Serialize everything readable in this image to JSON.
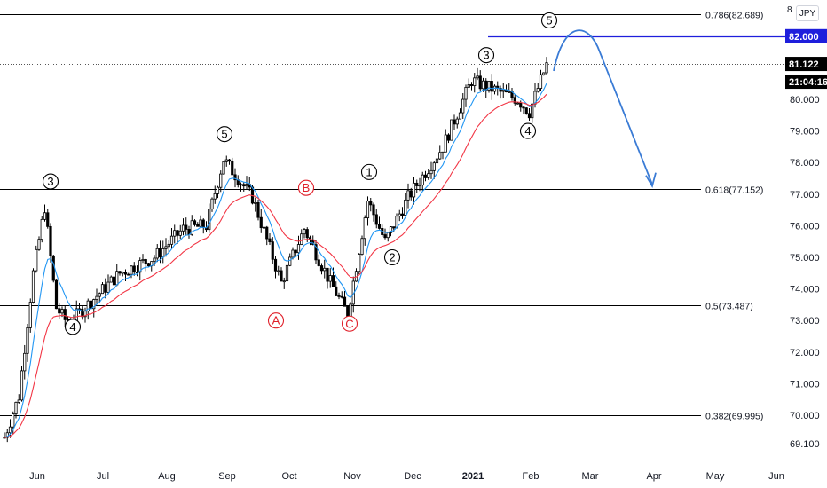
{
  "currency_badge": "JPY",
  "top_axis_fragment": "8",
  "colors": {
    "up_candle": "#000000",
    "down_candle": "#000000",
    "ema_fast": "#2196f3",
    "ema_slow": "#f23645",
    "fib_line": "#000000",
    "target_line": "#1e1edc",
    "projection": "#3a7bd5",
    "wave_black": "#000000",
    "wave_red": "#e0202a"
  },
  "chart_data": {
    "type": "candlestick",
    "y_axis_ticks": [
      "69.100",
      "70.000",
      "71.000",
      "72.000",
      "73.000",
      "74.000",
      "75.000",
      "76.000",
      "77.000",
      "78.000",
      "79.000",
      "80.000"
    ],
    "ylim": [
      68.6,
      83.2
    ],
    "x_axis_ticks": [
      "Jun",
      "Jul",
      "Aug",
      "Sep",
      "Oct",
      "Nov",
      "Dec",
      "2021",
      "Feb",
      "Mar",
      "Apr",
      "May",
      "Jun"
    ],
    "fib_levels": [
      {
        "label": "0.786(82.689)",
        "value": 82.689
      },
      {
        "label": "0.618(77.152)",
        "value": 77.152
      },
      {
        "label": "0.5(73.487)",
        "value": 73.487
      },
      {
        "label": "0.382(69.995)",
        "value": 69.995
      }
    ],
    "price_tags": [
      {
        "label": "82.000",
        "value": 82.0,
        "style": "target"
      },
      {
        "label": "81.122",
        "value": 81.122,
        "style": "current"
      },
      {
        "label": "21:04:16",
        "value": 80.6,
        "style": "countdown"
      }
    ],
    "target_line": {
      "value": 82.0,
      "from_month": "Jan",
      "to_month": "Mar"
    },
    "current_price": 81.122,
    "wave_labels": [
      {
        "text": "3",
        "color": "black",
        "month": "Jun",
        "price": 77.4
      },
      {
        "text": "4",
        "color": "black",
        "month": "Jun",
        "price": 72.8
      },
      {
        "text": "5",
        "color": "black",
        "month": "Sep",
        "price": 78.9
      },
      {
        "text": "A",
        "color": "red",
        "month": "Oct",
        "price": 73.0
      },
      {
        "text": "B",
        "color": "red",
        "month": "Oct",
        "price": 77.2
      },
      {
        "text": "C",
        "color": "red",
        "month": "Nov",
        "price": 72.9
      },
      {
        "text": "1",
        "color": "black",
        "month": "Nov",
        "price": 77.7
      },
      {
        "text": "2",
        "color": "black",
        "month": "Nov",
        "price": 75.0
      },
      {
        "text": "3",
        "color": "black",
        "month": "Jan",
        "price": 81.4
      },
      {
        "text": "4",
        "color": "black",
        "month": "Feb",
        "price": 79.0
      },
      {
        "text": "5",
        "color": "black",
        "month": "Feb",
        "price": 82.5
      }
    ],
    "projection": {
      "peak": 82.0,
      "target": 77.2,
      "end_month": "Apr"
    },
    "price_series_approx": [
      [
        "May-20",
        69.3
      ],
      [
        "May-27",
        70.6
      ],
      [
        "Jun-03",
        74.5
      ],
      [
        "Jun-08",
        76.6
      ],
      [
        "Jun-15",
        73.4
      ],
      [
        "Jun-22",
        73.1
      ],
      [
        "Jul-01",
        73.6
      ],
      [
        "Jul-15",
        74.5
      ],
      [
        "Aug-01",
        75.0
      ],
      [
        "Aug-15",
        75.8
      ],
      [
        "Sep-01",
        76.5
      ],
      [
        "Sep-07",
        78.1
      ],
      [
        "Sep-20",
        76.9
      ],
      [
        "Oct-05",
        74.2
      ],
      [
        "Oct-20",
        75.9
      ],
      [
        "Nov-02",
        73.2
      ],
      [
        "Nov-10",
        76.8
      ],
      [
        "Nov-20",
        75.5
      ],
      [
        "Dec-01",
        77.0
      ],
      [
        "Dec-15",
        78.5
      ],
      [
        "Jan-06",
        80.6
      ],
      [
        "Jan-20",
        80.1
      ],
      [
        "Feb-01",
        79.7
      ],
      [
        "Feb-08",
        81.1
      ]
    ]
  }
}
